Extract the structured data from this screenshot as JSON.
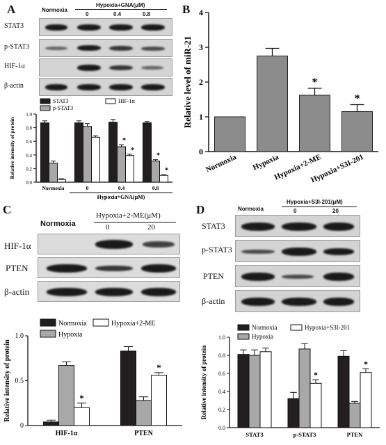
{
  "panels": {
    "A": {
      "label": "A",
      "header_left": "Normoxia",
      "header_group": "Hypoxia+GNA(μM)",
      "header_doses": [
        "0",
        "0.4",
        "0.8"
      ],
      "blot_rows": [
        "STAT3",
        "p-STAT3",
        "HIF-1α",
        "β-actin"
      ]
    },
    "B": {
      "label": "B"
    },
    "C": {
      "label": "C",
      "header_left": "Normoxia",
      "header_group": "Hypoxia+2-ME(μM)",
      "header_doses": [
        "0",
        "20"
      ],
      "blot_rows": [
        "HIF-1α",
        "PTEN",
        "β-actin"
      ]
    },
    "D": {
      "label": "D",
      "header_left": "Normoxia",
      "header_group": "Hypoxia+S3I-201(μM)",
      "header_doses": [
        "0",
        "20"
      ],
      "blot_rows": [
        "STAT3",
        "p-STAT3",
        "PTEN",
        "β-actin"
      ]
    }
  },
  "colors": {
    "black_bar": "#231f20",
    "gray_bar": "#a8a8a8",
    "white_bar": "#ffffff",
    "b_bar": "#8c8c8c"
  },
  "chart_data": [
    {
      "id": "A",
      "type": "bar",
      "ylabel": "Relative intensity of protein",
      "categories": [
        "Normoxia",
        "0",
        "0.4",
        "0.8"
      ],
      "group_label": "Hypoxia+GNA(μM)",
      "ylim": [
        0,
        1.0
      ],
      "yticks": [
        "0.0",
        "0.2",
        "0.4",
        "0.6",
        "0.8",
        "1.0"
      ],
      "legend": "top",
      "series": [
        {
          "name": "STAT3",
          "values": [
            0.87,
            0.87,
            0.88,
            0.87
          ],
          "errors": [
            0.03,
            0.03,
            0.04,
            0.02
          ]
        },
        {
          "name": "p-STAT3",
          "values": [
            0.28,
            0.82,
            0.52,
            0.31
          ],
          "errors": [
            0.03,
            0.04,
            0.03,
            0.02
          ]
        },
        {
          "name": "HIF-1α",
          "values": [
            0.04,
            0.66,
            0.39,
            0.1
          ],
          "errors": [
            0.01,
            0.02,
            0.02,
            0.01
          ]
        }
      ],
      "significance": [
        "",
        "",
        "* *",
        "* *"
      ]
    },
    {
      "id": "B",
      "type": "bar",
      "ylabel": "Relative level of miR-21",
      "categories": [
        "Normoxia",
        "Hypoxia",
        "Hypoxia+2-ME",
        "Hypoxia+S3I-201"
      ],
      "ylim": [
        0,
        4
      ],
      "yticks": [
        "0",
        "1",
        "2",
        "3",
        "4"
      ],
      "values": [
        1.0,
        2.75,
        1.62,
        1.15
      ],
      "errors": [
        0.0,
        0.22,
        0.2,
        0.2
      ],
      "significance": [
        "",
        "",
        "*",
        "*"
      ]
    },
    {
      "id": "C",
      "type": "bar",
      "ylabel": "Relative intensity of protein",
      "categories": [
        "HIF-1α",
        "PTEN"
      ],
      "ylim": [
        0,
        1.0
      ],
      "yticks": [
        "0",
        "0.5",
        "1.0"
      ],
      "legend": "top",
      "series": [
        {
          "name": "Normoxia",
          "values": [
            0.04,
            0.83
          ],
          "errors": [
            0.02,
            0.05
          ]
        },
        {
          "name": "Hypoxia",
          "values": [
            0.67,
            0.28
          ],
          "errors": [
            0.04,
            0.04
          ]
        },
        {
          "name": "Hypoxia+2-ME",
          "values": [
            0.2,
            0.56
          ],
          "errors": [
            0.05,
            0.03
          ]
        }
      ],
      "significance": [
        "*",
        "*"
      ]
    },
    {
      "id": "D",
      "type": "bar",
      "ylabel": "Relative intensity of protein",
      "categories": [
        "STAT3",
        "p-STAT3",
        "PTEN"
      ],
      "ylim": [
        0,
        1.0
      ],
      "yticks": [
        "0.0",
        "0.2",
        "0.4",
        "0.6",
        "0.8",
        "1.0"
      ],
      "legend": "top",
      "series": [
        {
          "name": "Normoxia",
          "values": [
            0.81,
            0.32,
            0.79
          ],
          "errors": [
            0.05,
            0.07,
            0.06
          ]
        },
        {
          "name": "Hypoxia",
          "values": [
            0.8,
            0.87,
            0.27
          ],
          "errors": [
            0.06,
            0.06,
            0.02
          ]
        },
        {
          "name": "Hypoxia+S3I-201",
          "values": [
            0.84,
            0.49,
            0.61
          ],
          "errors": [
            0.04,
            0.04,
            0.04
          ]
        }
      ],
      "significance": [
        "",
        "*",
        "*"
      ]
    }
  ]
}
